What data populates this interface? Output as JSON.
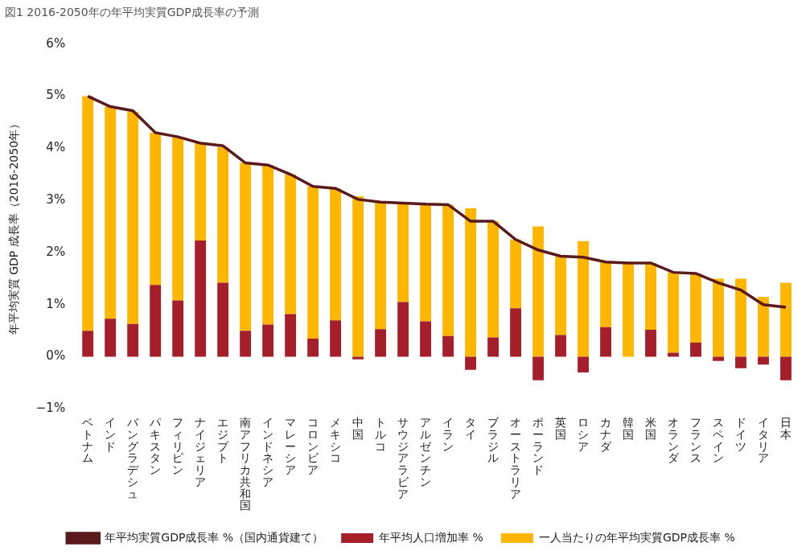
{
  "chart_data": {
    "type": "bar",
    "title": "図1 2016-2050年の年平均実質GDP成長率の予測",
    "y_label": "年平均実質 GDP 成長率（2016-2050年）",
    "stacked": true,
    "grid": false,
    "legend": "bottom",
    "categories": [
      "ベトナム",
      "インド",
      "バングラデシュ",
      "パキスタン",
      "フィリピン",
      "ナイジェリア",
      "エジプト",
      "南アフリカ共和国",
      "インドネシア",
      "マレーシア",
      "コロンビア",
      "メキシコ",
      "中国",
      "トルコ",
      "サウジアラビア",
      "アルゼンチン",
      "イラン",
      "タイ",
      "ブラジル",
      "オーストラリア",
      "ポーランド",
      "英国",
      "ロシア",
      "カナダ",
      "韓国",
      "米国",
      "オランダ",
      "フランス",
      "スペイン",
      "ドイツ",
      "イタリア",
      "日本"
    ],
    "series": [
      {
        "name": "年平均人口増加率 %",
        "type": "bar",
        "color": "#a51f2b",
        "values": [
          0.5,
          0.73,
          0.63,
          1.38,
          1.08,
          2.23,
          1.42,
          0.5,
          0.62,
          0.82,
          0.35,
          0.7,
          -0.05,
          0.53,
          1.05,
          0.68,
          0.4,
          -0.25,
          0.37,
          0.93,
          -0.45,
          0.42,
          -0.3,
          0.57,
          0.0,
          0.52,
          0.08,
          0.27,
          -0.08,
          -0.22,
          -0.15,
          -0.45
        ]
      },
      {
        "name": "一人当たりの年平均実質GDP成長率 %",
        "type": "bar",
        "color": "#ffb600",
        "values": [
          4.5,
          4.07,
          4.07,
          2.92,
          3.14,
          1.87,
          2.6,
          3.22,
          3.06,
          2.68,
          2.92,
          2.53,
          3.08,
          2.44,
          1.9,
          2.25,
          2.52,
          2.85,
          2.23,
          1.32,
          2.5,
          1.51,
          2.22,
          1.25,
          1.8,
          1.28,
          1.54,
          1.33,
          1.5,
          1.5,
          1.15,
          1.42
        ]
      },
      {
        "name": "年平均実質GDP成長率 %（国内通貨建て）",
        "type": "line",
        "color": "#5a1a1c",
        "line_style": "solid",
        "marker": "none",
        "values": [
          5.0,
          4.8,
          4.72,
          4.3,
          4.22,
          4.1,
          4.05,
          3.72,
          3.68,
          3.5,
          3.27,
          3.23,
          3.02,
          2.97,
          2.95,
          2.93,
          2.92,
          2.6,
          2.6,
          2.25,
          2.05,
          1.93,
          1.91,
          1.82,
          1.8,
          1.8,
          1.62,
          1.6,
          1.42,
          1.28,
          1.0,
          0.95
        ]
      }
    ],
    "ylim": [
      -1,
      6
    ],
    "yticks": [
      {
        "value": -1,
        "label": "−1%"
      },
      {
        "value": 0,
        "label": "0%"
      },
      {
        "value": 1,
        "label": "1%"
      },
      {
        "value": 2,
        "label": "2%"
      },
      {
        "value": 3,
        "label": "3%"
      },
      {
        "value": 4,
        "label": "4%"
      },
      {
        "value": 5,
        "label": "5%"
      },
      {
        "value": 6,
        "label": "6%"
      }
    ]
  }
}
